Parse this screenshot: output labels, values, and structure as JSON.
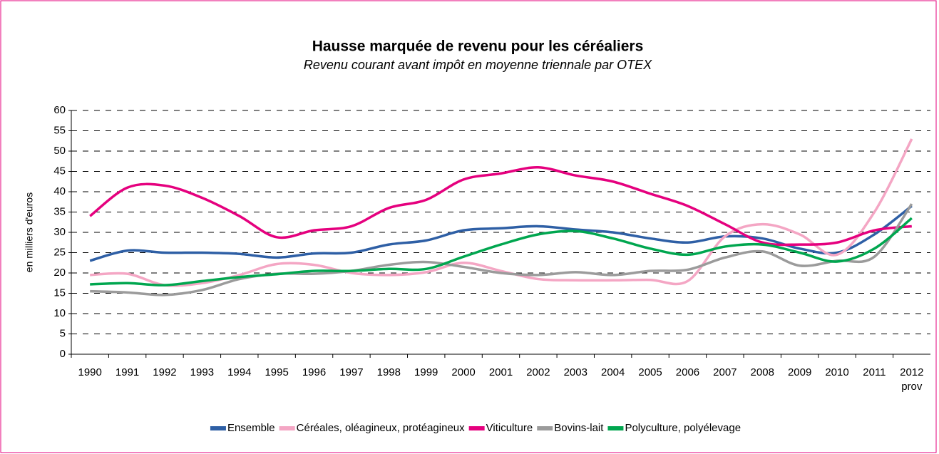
{
  "chart_data": {
    "type": "line",
    "title": "Hausse marquée de revenu pour les céréaliers",
    "subtitle": "Revenu courant avant impôt en moyenne triennale par OTEX",
    "y_label": "en milliers d'euros",
    "categories": [
      "1990",
      "1991",
      "1992",
      "1993",
      "1994",
      "1995",
      "1996",
      "1997",
      "1998",
      "1999",
      "2000",
      "2001",
      "2002",
      "2003",
      "2004",
      "2005",
      "2006",
      "2007",
      "2008",
      "2009",
      "2010",
      "2011",
      "2012\nprov"
    ],
    "series": [
      {
        "name": "Ensemble",
        "color": "#2e5fa5",
        "values": [
          23,
          25.5,
          25,
          25,
          24.7,
          23.8,
          24.8,
          25,
          27,
          28,
          30.5,
          31,
          31.5,
          30.7,
          30,
          28.5,
          27.5,
          29,
          28.5,
          26,
          25,
          29.5,
          36.5
        ]
      },
      {
        "name": "Céréales, oléagineux, protéagineux",
        "color": "#f4a6c4",
        "values": [
          19.5,
          19.8,
          17,
          17.5,
          19.5,
          22.2,
          22,
          20,
          19.5,
          20.2,
          22.5,
          20.5,
          18.5,
          18.2,
          18.2,
          18.3,
          18,
          29,
          32,
          29.5,
          24.5,
          35,
          53
        ]
      },
      {
        "name": "Viticulture",
        "color": "#e5007e",
        "values": [
          34,
          41,
          41.5,
          38.5,
          34,
          28.8,
          30.5,
          31.5,
          36,
          38,
          43,
          44.5,
          46,
          44,
          42.5,
          39.5,
          36.5,
          32,
          27.5,
          27,
          27.5,
          30.5,
          31.5
        ]
      },
      {
        "name": "Bovins-lait",
        "color": "#9b9b9b",
        "values": [
          15.5,
          15.2,
          14.6,
          15.8,
          18.5,
          19.8,
          19.8,
          20.5,
          22,
          22.7,
          21.5,
          20,
          19.5,
          20.2,
          19.5,
          20.5,
          20.8,
          23.8,
          25.3,
          21.8,
          23,
          24,
          37
        ]
      },
      {
        "name": "Polyculture, polyélevage",
        "color": "#00a64f",
        "values": [
          17.2,
          17.5,
          17,
          18,
          19,
          19.7,
          20.5,
          20.5,
          21,
          21,
          24,
          27,
          29.5,
          30.3,
          28.5,
          26,
          24.5,
          26.5,
          27,
          25,
          22.8,
          26,
          33.5
        ]
      }
    ],
    "ylim": [
      0,
      60
    ],
    "yticks": [
      0,
      5,
      10,
      15,
      20,
      25,
      30,
      35,
      40,
      45,
      50,
      55,
      60
    ],
    "grid": true,
    "legend": "bottom"
  }
}
